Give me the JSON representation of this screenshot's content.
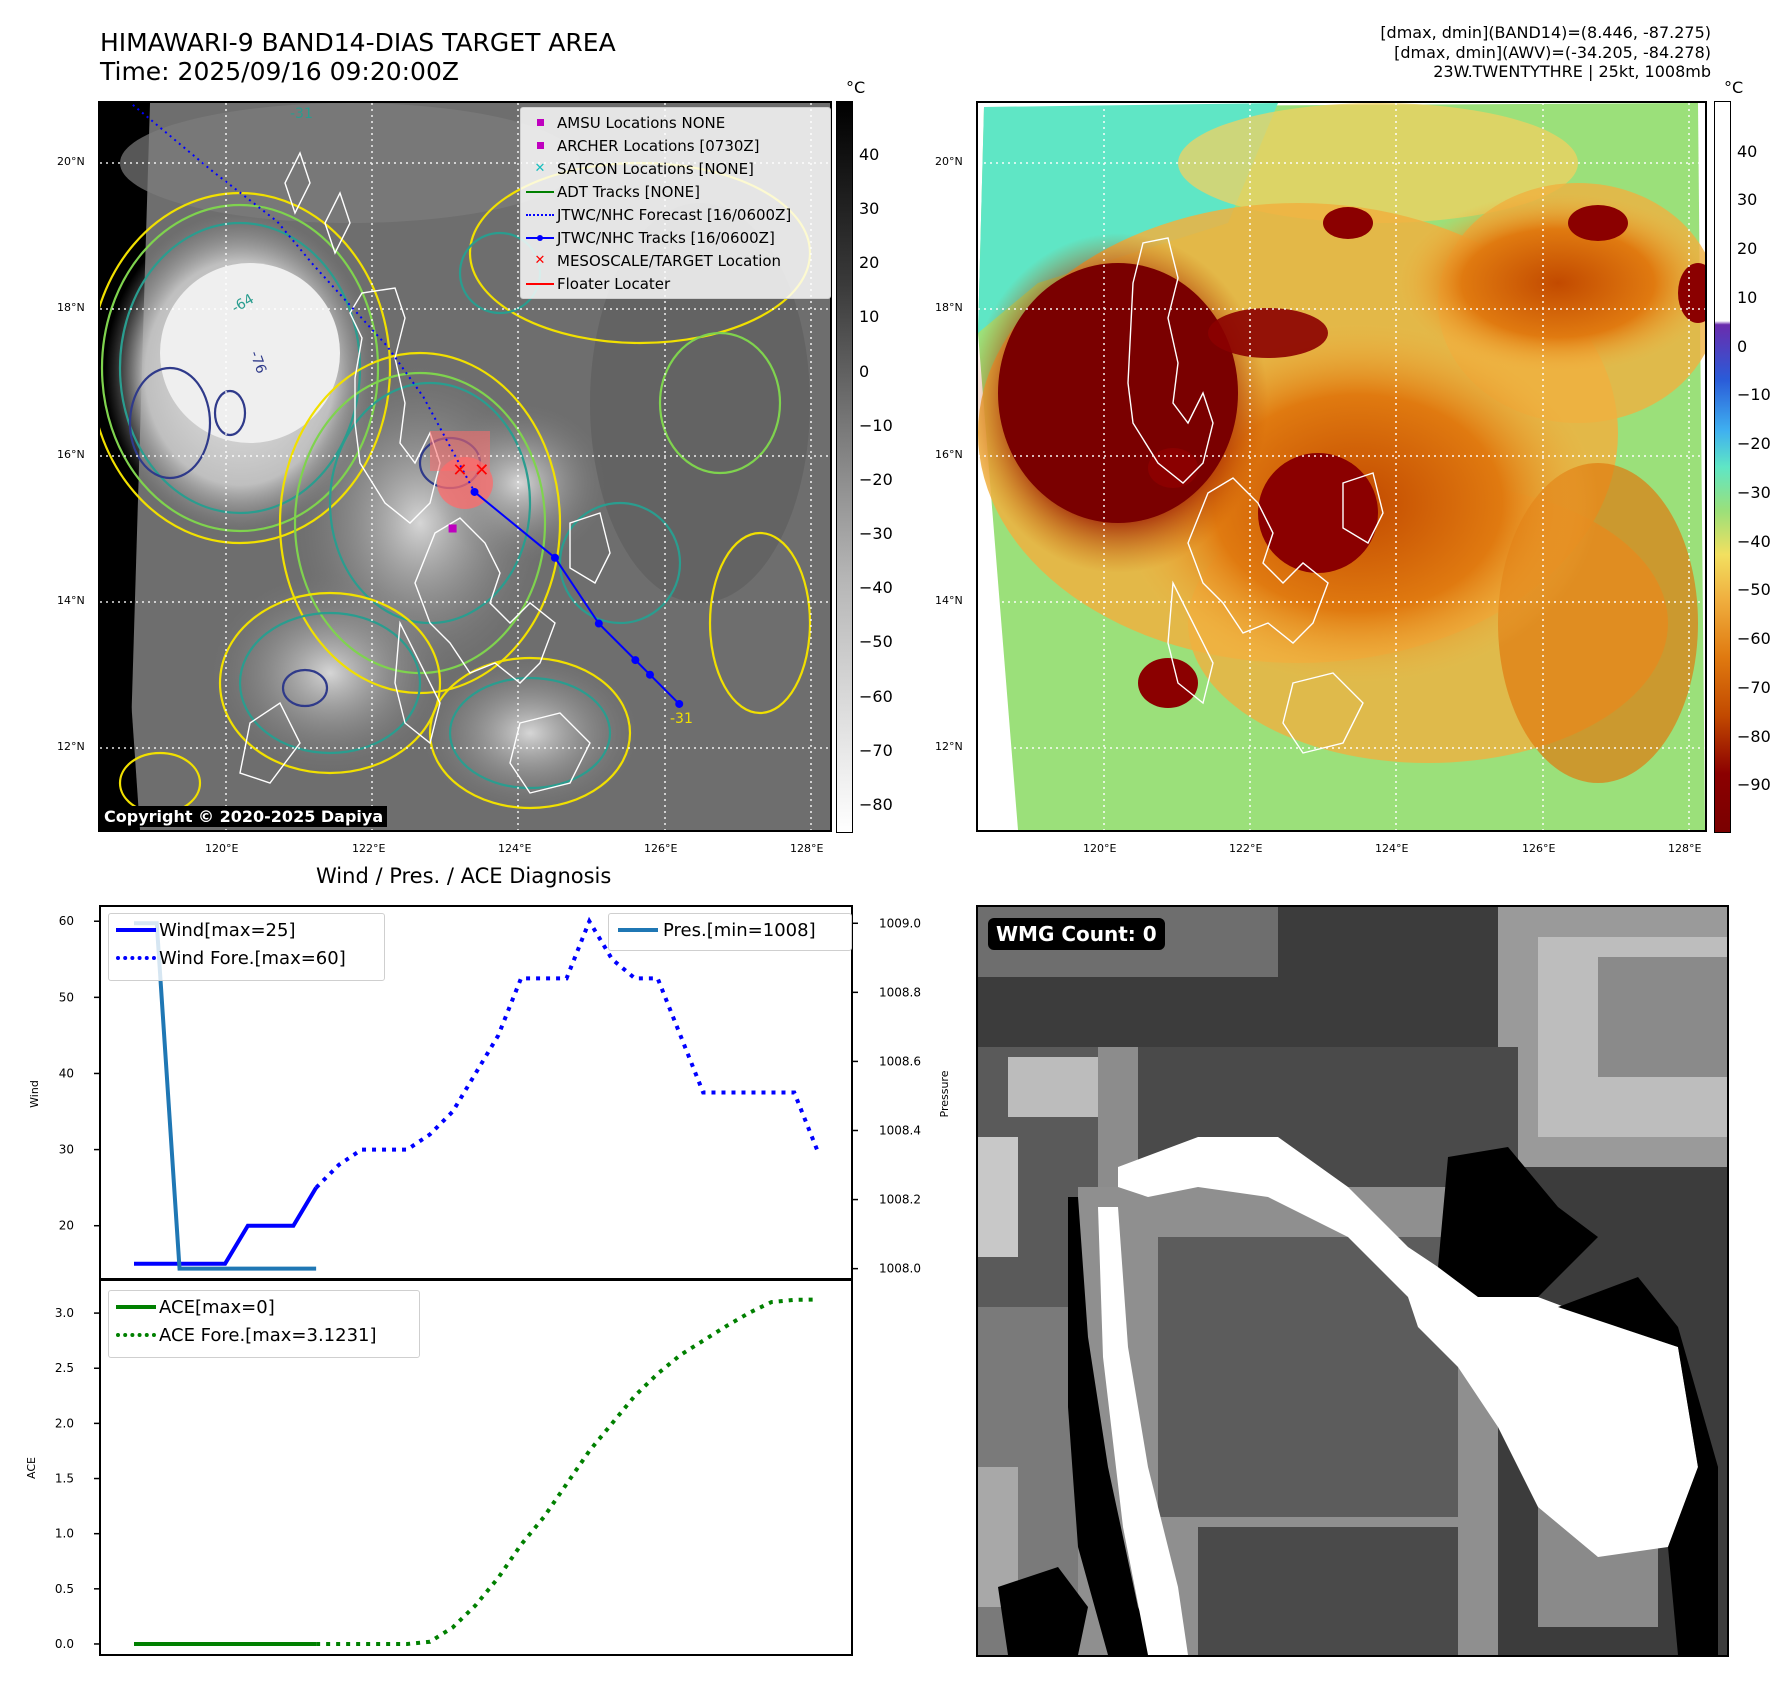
{
  "header": {
    "title_line1": "HIMAWARI-9 BAND14-DIAS TARGET AREA",
    "title_line2": "Time: 2025/09/16 09:20:00Z",
    "info_line1": "[dmax, dmin](BAND14)=(8.446, -87.275)",
    "info_line2": "[dmax, dmin](AWV)=(-34.205, -84.278)",
    "info_line3": "23W.TWENTYTHRE | 25kt, 1008mb"
  },
  "map": {
    "lat_labels": [
      "20°N",
      "18°N",
      "16°N",
      "14°N",
      "12°N"
    ],
    "lon_labels": [
      "120°E",
      "122°E",
      "124°E",
      "126°E",
      "128°E"
    ],
    "copyright": "Copyright © 2020-2025 Dapiya",
    "contour_label": "-31",
    "contour_labels": [
      "-31",
      "-64",
      "-76"
    ],
    "track_points": [
      {
        "lon": 123.4,
        "lat": 15.5
      },
      {
        "lon": 124.5,
        "lat": 14.6
      },
      {
        "lon": 125.1,
        "lat": 13.7
      },
      {
        "lon": 125.6,
        "lat": 13.2
      },
      {
        "lon": 125.8,
        "lat": 13.0
      },
      {
        "lon": 126.2,
        "lat": 12.6
      }
    ],
    "forecast_points": [
      {
        "lon": 118.6,
        "lat": 20.9
      },
      {
        "lon": 119.8,
        "lat": 19.9
      },
      {
        "lon": 120.7,
        "lat": 19.2
      },
      {
        "lon": 121.2,
        "lat": 18.6
      },
      {
        "lon": 122.2,
        "lat": 17.5
      },
      {
        "lon": 122.7,
        "lat": 16.8
      },
      {
        "lon": 123.4,
        "lat": 15.5
      }
    ],
    "target_marks": [
      {
        "lon": 123.2,
        "lat": 15.8
      },
      {
        "lon": 123.5,
        "lat": 15.8
      }
    ],
    "archer_mark": {
      "lon": 123.1,
      "lat": 15.0
    }
  },
  "legend": {
    "items": [
      {
        "label": "AMSU Locations NONE",
        "symbol": "square",
        "color": "#bf00bf"
      },
      {
        "label": "ARCHER Locations [0730Z]",
        "symbol": "square",
        "color": "#bf00bf"
      },
      {
        "label": "SATCON Locations [NONE]",
        "symbol": "x",
        "color": "#17bebe"
      },
      {
        "label": "ADT Tracks [NONE]",
        "symbol": "line",
        "color": "#008000"
      },
      {
        "label": "JTWC/NHC Forecast [16/0600Z]",
        "symbol": "dotted",
        "color": "#0000ff"
      },
      {
        "label": "JTWC/NHC Tracks [16/0600Z]",
        "symbol": "line-dot",
        "color": "#0000ff"
      },
      {
        "label": "MESOSCALE/TARGET Location",
        "symbol": "x",
        "color": "#ff0000"
      },
      {
        "label": "Floater Locater",
        "symbol": "line",
        "color": "#ff0000"
      }
    ]
  },
  "colorbar_left": {
    "unit": "°C",
    "labels": [
      "40",
      "30",
      "20",
      "10",
      "0",
      "−10",
      "−20",
      "−30",
      "−40",
      "−50",
      "−60",
      "−70",
      "−80"
    ]
  },
  "colorbar_right": {
    "unit": "°C",
    "labels": [
      "40",
      "30",
      "20",
      "10",
      "0",
      "−10",
      "−20",
      "−30",
      "−40",
      "−50",
      "−60",
      "−70",
      "−80",
      "−90"
    ]
  },
  "diagnosis": {
    "title": "Wind / Pres. / ACE Diagnosis",
    "wind_ylabel": "Wind",
    "pres_ylabel": "Pressure",
    "ace_ylabel": "ACE",
    "wind_ticks": [
      "60",
      "50",
      "40",
      "30",
      "20"
    ],
    "pres_ticks": [
      "1009.0",
      "1008.8",
      "1008.6",
      "1008.4",
      "1008.2",
      "1008.0"
    ],
    "ace_ticks": [
      "3.0",
      "2.5",
      "2.0",
      "1.5",
      "1.0",
      "0.5",
      "0.0"
    ],
    "wind_legend_1": "Wind[max=25]",
    "wind_legend_2": "Wind Fore.[max=60]",
    "pres_legend": "Pres.[min=1008]",
    "ace_legend_1": "ACE[max=0]",
    "ace_legend_2": "ACE Fore.[max=3.1231]"
  },
  "wmg": {
    "label": "WMG Count: 0"
  },
  "colors": {
    "wind": "#0000ff",
    "pressure": "#1f77b4",
    "ace": "#008000",
    "contour_yellow": "#f1e000",
    "contour_green": "#7fd34e",
    "contour_teal": "#2a9d8f",
    "contour_navy": "#2f3a8a"
  },
  "chart_data": [
    {
      "type": "line",
      "title": "Wind / Pres. / ACE Diagnosis",
      "ylabel": "Wind",
      "ylim": [
        13,
        62
      ],
      "series": [
        {
          "name": "Wind[max=25]",
          "x": [
            0,
            1,
            2,
            3,
            4,
            5,
            6,
            7,
            8
          ],
          "values": [
            15,
            15,
            15,
            15,
            15,
            20,
            20,
            20,
            25
          ]
        },
        {
          "name": "Wind Fore.[max=60]",
          "x": [
            8,
            9,
            10,
            11,
            12,
            13,
            14,
            15,
            16,
            17,
            18,
            19,
            20,
            21,
            22,
            23,
            24,
            25,
            26,
            27,
            28,
            29,
            30
          ],
          "values": [
            25,
            28,
            30,
            30,
            30,
            32,
            35,
            40,
            45,
            52.5,
            52.5,
            52.5,
            60,
            55,
            52.5,
            52.5,
            45,
            37.5,
            37.5,
            37.5,
            37.5,
            37.5,
            30
          ]
        }
      ]
    },
    {
      "type": "line",
      "ylabel": "Pressure",
      "ylim": [
        1007.97,
        1009.05
      ],
      "series": [
        {
          "name": "Pres.[min=1008]",
          "x": [
            0,
            1,
            2,
            3,
            4,
            5,
            6,
            7,
            8
          ],
          "values": [
            1009,
            1009,
            1008,
            1008,
            1008,
            1008,
            1008,
            1008,
            1008
          ]
        }
      ]
    },
    {
      "type": "line",
      "ylabel": "ACE",
      "ylim": [
        -0.1,
        3.3
      ],
      "series": [
        {
          "name": "ACE[max=0]",
          "x": [
            0,
            1,
            2,
            3,
            4,
            5,
            6,
            7,
            8
          ],
          "values": [
            0,
            0,
            0,
            0,
            0,
            0,
            0,
            0,
            0
          ]
        },
        {
          "name": "ACE Fore.[max=3.1231]",
          "x": [
            8,
            9,
            10,
            11,
            12,
            13,
            14,
            15,
            16,
            17,
            18,
            19,
            20,
            21,
            22,
            23,
            24,
            25,
            26,
            27,
            28,
            29,
            30
          ],
          "values": [
            0,
            0,
            0,
            0,
            0,
            0.02,
            0.15,
            0.35,
            0.6,
            0.9,
            1.15,
            1.45,
            1.75,
            2.0,
            2.25,
            2.45,
            2.62,
            2.75,
            2.88,
            3.0,
            3.1,
            3.12,
            3.1231
          ]
        }
      ]
    }
  ]
}
